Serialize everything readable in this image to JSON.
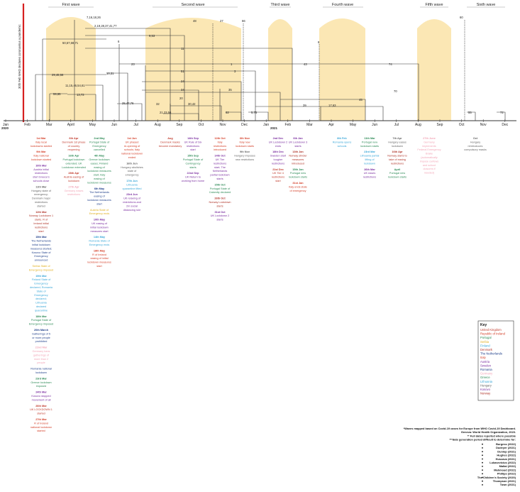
{
  "title_vertical": "30th Feb WHO declares coronavirus a pandemic",
  "year_labels": [
    "2020",
    "2021"
  ],
  "months": [
    "Jan",
    "Feb",
    "Mar",
    "April",
    "May",
    "Jun",
    "Jul",
    "Aug",
    "Sep",
    "Oct",
    "Nov",
    "Dec",
    "Jan",
    "Feb",
    "Mar",
    "Apr",
    "May",
    "Jun",
    "Jul",
    "Aug",
    "Sep",
    "Oct",
    "Nov",
    "Dec"
  ],
  "waves": [
    {
      "name": "First wave"
    },
    {
      "name": "Second wave"
    },
    {
      "name": "Third wave"
    },
    {
      "name": "Fourth wave"
    },
    {
      "name": "Fifth wave"
    },
    {
      "name": "Sixth wave"
    }
  ],
  "top_numbers": [
    "7,16,18,26",
    "48",
    "27",
    "66",
    "8",
    "60"
  ],
  "data_labels": [
    "2,19,28,37,41,77",
    "50,57,68,71",
    "9,53",
    "11",
    "6",
    "23",
    "1",
    "43",
    "74",
    "29,45,58",
    "10,31",
    "51",
    "3",
    "11,15,46,54,61",
    "24",
    "35",
    "34",
    "59,65",
    "13,73",
    "20",
    "45",
    "25,47,76",
    "32",
    "30,42",
    "39",
    "17,63",
    "70",
    "21,23,56",
    "62",
    "5,75",
    "55",
    "72"
  ],
  "event_columns": [
    {
      "items": [
        {
          "date": "1st Mar",
          "text": "Italy local lockdowns started",
          "color": "#d4402a"
        },
        {
          "date": "9th Mar",
          "text": "Italy national lockdown started",
          "color": "#d4402a"
        },
        {
          "date": "10th Mar",
          "text": "Austria initial restrictions start Greece's schools close",
          "color": "#7b2fa0"
        },
        {
          "date": "11th Mar",
          "text": "Hungary state of emergency; Denmark major restrictions started",
          "color": "#666666"
        },
        {
          "date": "12th Mar",
          "text": "Norway Lockdown 1 starts. R of Ireland initial restrictions start",
          "color": "#b0352a"
        },
        {
          "date": "15th Mar",
          "text": "The Netherlands initial lockdown measures started; Kosovo State of Emergency announced",
          "color": "#1f3f8a"
        },
        {
          "date": "",
          "text": "Serbia State of Emergency imposed",
          "color": "#e0b020"
        },
        {
          "date": "19th Mar",
          "text": "Finland State of Emergency declared; Romania State of Emergency declared; Lithuania declared quarantine",
          "color": "#3aa7d8"
        },
        {
          "date": "18th Mar",
          "text": "Portugal State of Emergency imposed",
          "color": "#2e8b57"
        },
        {
          "date": "20th March",
          "text": "Gatherings of 5 or more people prohibited",
          "color": "#1f3f8a"
        },
        {
          "date": "22nd Mar",
          "text": "Germany bans gatherings of more than 2 people",
          "color": "#f2a7b8"
        },
        {
          "date": "",
          "text": "Romania national lockdown",
          "color": "#1f3f8a"
        },
        {
          "date": "23rd Mar",
          "text": "Greece lockdown imposed",
          "color": "#2e8b57"
        },
        {
          "date": "24th Mar",
          "text": "Kosovo stopped movement of all",
          "color": "#7b2fa0"
        },
        {
          "date": "26th Mar",
          "text": "UK LOCKDOWN 1 started",
          "color": "#c0392b"
        },
        {
          "date": "27th Mar",
          "text": "R of Ireland national lockdown started",
          "color": "#d4402a"
        }
      ]
    },
    {
      "items": [
        {
          "date": "6th Apr",
          "text": "Denmark 1st phase of country reopening",
          "color": "#c0392b"
        },
        {
          "date": "16th Apr",
          "text": "Portugal lockdown extended; UK Lockdown extended",
          "color": "#2e8b57"
        },
        {
          "date": "28th Apr",
          "text": "Austria easing of lockdown",
          "color": "#c0392b"
        },
        {
          "date": "27th Apr",
          "text": "Germany eases restrictions",
          "color": "#f2a7b8"
        }
      ]
    },
    {
      "items": [
        {
          "date": "2nd May",
          "text": "Portugal State of Emergency cancelled",
          "color": "#2e8b57"
        },
        {
          "date": "4th May",
          "text": "Greece lockdown eases; Finland easing of lockdown measures start; Italy easing of lockdown measures",
          "color": "#2e8b57"
        },
        {
          "date": "6th May",
          "text": "The Netherlands easing of lockdown measures start",
          "color": "#1f3f8a"
        },
        {
          "date": "",
          "text": "Austria State of Emergency ends",
          "color": "#e0b020"
        },
        {
          "date": "10th May",
          "text": "UK easing of initial lockdown measures start",
          "color": "#7b2fa0"
        },
        {
          "date": "14th May",
          "text": "Romania State of Emergency ends",
          "color": "#3aa7d8"
        },
        {
          "date": "18th May",
          "text": "R of Ireland easing of initial lockdown measures start",
          "color": "#d4402a"
        }
      ]
    },
    {
      "items": [
        {
          "date": "1st Jun",
          "text": "UK phased re-opening of schools; Italy national lockdown ended",
          "color": "#d4402a"
        },
        {
          "date": "16th Jun",
          "text": "Hungary abolishes state of emergency",
          "color": "#666666"
        },
        {
          "date": "17th Jun",
          "text": "Lithuania quarantine lifted",
          "color": "#3aa7d8"
        },
        {
          "date": "23rd Jun",
          "text": "UK relaxing of restrictions and 2m social distancing rule",
          "color": "#7b2fa0"
        }
      ]
    },
    {
      "items": [
        {
          "date": "Aug",
          "text": "Denmark masks become mandatory",
          "color": "#c0392b"
        }
      ]
    },
    {
      "items": [
        {
          "date": "14th Sep",
          "text": "UK Rule of Six restrictions start",
          "color": "#7b2fa0"
        },
        {
          "date": "15th Sep",
          "text": "Portugal State of Contingency starts",
          "color": "#2e8b57"
        },
        {
          "date": "22nd Sep",
          "text": "UK Return to working from home",
          "color": "#7b2fa0"
        }
      ]
    },
    {
      "items": [
        {
          "date": "12th Oct",
          "text": "Italy restrictions introduced",
          "color": "#d4402a"
        },
        {
          "date": "14th Oct",
          "text": "UK Tier restrictions start; The Netherlands partial lockdown starts",
          "color": "#7b2fa0"
        },
        {
          "date": "15th Oct",
          "text": "Portugal State of Calamity declared",
          "color": "#2e8b57"
        },
        {
          "date": "26th Oct",
          "text": "Norway Lockdown starts",
          "color": "#b0352a"
        },
        {
          "date": "31st Oct",
          "text": "UK Lockdown 2 starts",
          "color": "#7b2fa0"
        }
      ]
    },
    {
      "items": [
        {
          "date": "6th Nov",
          "text": "Italy new lockdown starts",
          "color": "#d4402a"
        },
        {
          "date": "9th Nov",
          "text": "Hungary imposes new restrictions",
          "color": "#666666"
        }
      ]
    },
    {
      "items": [
        {
          "date": "2nd Dec",
          "text": "UK Lockdown 2 ends",
          "color": "#7b2fa0"
        },
        {
          "date": "18th Dec",
          "text": "Sweden start tougher restrictions",
          "color": "#7b2fa0"
        },
        {
          "date": "21st Dec",
          "text": "UK Tier 4 restrictions start",
          "color": "#c0392b"
        }
      ]
    },
    {
      "items": [
        {
          "date": "6th Jan",
          "text": "UK Lockdown 3 starts",
          "color": "#7b2fa0"
        },
        {
          "date": "13th Jan",
          "text": "Norway stricter measures introduced",
          "color": "#b0352a"
        },
        {
          "date": "15th Jan",
          "text": "Portugal new lockdown starts",
          "color": "#2e8b57"
        },
        {
          "date": "31st Jan",
          "text": "Italy ends state of emergency",
          "color": "#d4402a"
        }
      ]
    },
    {
      "items": [
        {
          "date": "8th Feb",
          "text": "Romania opens schools",
          "color": "#3aa7d8"
        }
      ]
    },
    {
      "items": [
        {
          "date": "11th Mar",
          "text": "Portugal new lockdown starts",
          "color": "#2e8b57"
        },
        {
          "date": "23rd Mar",
          "text": "Lithuania partial lifting of lockdown",
          "color": "#3aa7d8"
        },
        {
          "date": "26th Mar",
          "text": "UK eases restrictions",
          "color": "#7b2fa0"
        }
      ]
    },
    {
      "items": [
        {
          "date": "7th Apr",
          "text": "Hungary eases lockdown",
          "color": "#666666"
        },
        {
          "date": "16th Apr",
          "text": "Norway starts to take of easing restrictions",
          "color": "#b0352a"
        },
        {
          "date": "April",
          "text": "Portugal new lockdown starts",
          "color": "#2e8b57"
        }
      ]
    },
    {
      "items": [
        {
          "date": "27th June",
          "text": "Germany implements Federal Emergency Brake (automatically impose curfews and school closures if needed)",
          "color": "#f2a7b8"
        }
      ]
    },
    {
      "items": [
        {
          "date": "Oct",
          "text": "Hungary reintroduces compulsory masks",
          "color": "#666666"
        }
      ]
    }
  ],
  "key": {
    "title": "Key",
    "items": [
      {
        "name": "United Kingdom",
        "color": "#c0392b"
      },
      {
        "name": "Republic of Ireland",
        "color": "#d4402a"
      },
      {
        "name": "Portugal",
        "color": "#2e8b57"
      },
      {
        "name": "Serbia",
        "color": "#e0b020"
      },
      {
        "name": "Finland",
        "color": "#3aa7d8"
      },
      {
        "name": "Denmark",
        "color": "#b0352a"
      },
      {
        "name": "The Netherlands",
        "color": "#1f3f8a"
      },
      {
        "name": "Italy",
        "color": "#d4402a"
      },
      {
        "name": "Austria",
        "color": "#7b2fa0"
      },
      {
        "name": "Sweden",
        "color": "#7b2fa0"
      },
      {
        "name": "Romania",
        "color": "#1f3f8a"
      },
      {
        "name": "Germany",
        "color": "#f2a7b8"
      },
      {
        "name": "Greece",
        "color": "#2e8b57"
      },
      {
        "name": "Lithuania",
        "color": "#3aa7d8"
      },
      {
        "name": "Hungary",
        "color": "#666666"
      },
      {
        "name": "Kosovo",
        "color": "#7b2fa0"
      },
      {
        "name": "Norway",
        "color": "#b0352a"
      }
    ]
  },
  "notes": [
    "*Waves mapped based on Covid-19 cases for Europe from WHO Covid-19 Dashboard.",
    "Geneva: World Health Organization, 2023.",
    "** Full dates reported where possible",
    "***date generation period difficult to determine for:"
  ],
  "references": [
    "Burgess (2022)",
    "Dudeyer (2021)",
    "Dunlop (2021)",
    "Hughes (2022)",
    "Huscava (2021)",
    "Lukasevicius (2022)",
    "Maltai (2022)",
    "Mahmoud (2022)",
    "Phillips (2022)",
    "The Children's Society (2020)",
    "Thompson (2021)",
    "Town (2021)"
  ]
}
